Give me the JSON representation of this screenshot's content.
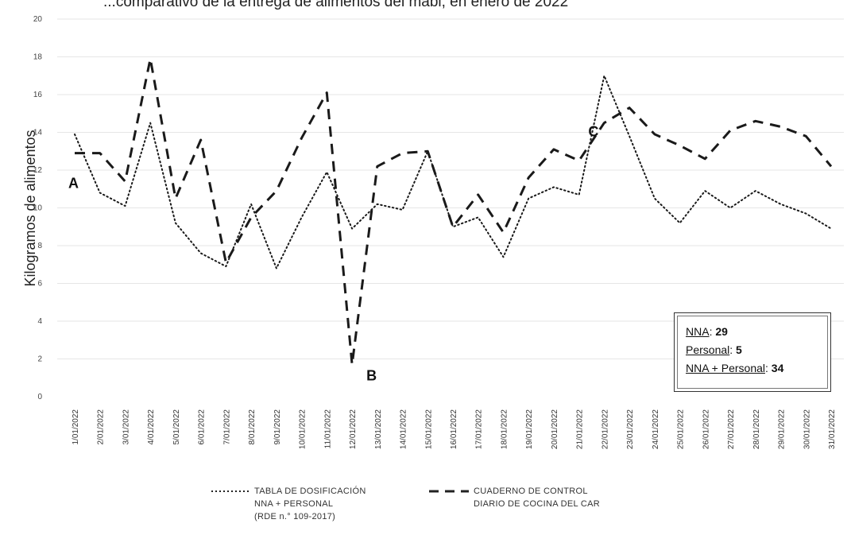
{
  "title": "...comparativo de la entrega de alimentos del mabi, en enero de 2022",
  "chart_data": {
    "type": "line",
    "ylabel": "Kilogramos de alimentos",
    "ylim": [
      0,
      20
    ],
    "y_ticks": [
      0,
      2,
      4,
      6,
      8,
      10,
      12,
      14,
      16,
      18,
      20
    ],
    "categories": [
      "1/01/2022",
      "2/01/2022",
      "3/01/2022",
      "4/01/2022",
      "5/01/2022",
      "6/01/2022",
      "7/01/2022",
      "8/01/2022",
      "9/01/2022",
      "10/01/2022",
      "11/01/2022",
      "12/01/2022",
      "13/01/2022",
      "14/01/2022",
      "15/01/2022",
      "16/01/2022",
      "17/01/2022",
      "18/01/2022",
      "19/01/2022",
      "20/01/2022",
      "21/01/2022",
      "22/01/2022",
      "23/01/2022",
      "24/01/2022",
      "25/01/2022",
      "26/01/2022",
      "27/01/2022",
      "28/01/2022",
      "29/01/2022",
      "30/01/2022",
      "31/01/2022"
    ],
    "series": [
      {
        "name": "TABLA DE DOSIFICACIÓN NNA + PERSONAL (RDE n.° 109-2017)",
        "style": "dotted",
        "values": [
          13.9,
          10.8,
          10.1,
          14.5,
          9.2,
          7.6,
          6.9,
          10.2,
          6.8,
          9.5,
          11.9,
          8.9,
          10.2,
          9.9,
          13.0,
          9.0,
          9.5,
          7.4,
          10.5,
          11.1,
          10.7,
          17.0,
          13.8,
          10.5,
          9.2,
          10.9,
          10.0,
          10.9,
          10.2,
          9.7,
          8.9
        ]
      },
      {
        "name": "CUADERNO DE CONTROL DIARIO DE COCINA DEL CAR",
        "style": "dashed",
        "values": [
          12.9,
          12.9,
          11.4,
          17.9,
          10.5,
          13.6,
          7.1,
          9.5,
          10.9,
          13.7,
          16.1,
          1.7,
          12.2,
          12.9,
          13.0,
          9.0,
          10.7,
          8.7,
          11.6,
          13.1,
          12.5,
          14.5,
          15.3,
          13.9,
          13.3,
          12.6,
          14.1,
          14.6,
          14.3,
          13.8,
          12.2
        ]
      }
    ],
    "annotations": [
      {
        "text": "A",
        "category": "1/01/2022"
      },
      {
        "text": "B",
        "category": "12/01/2022"
      },
      {
        "text": "C",
        "category": "22/01/2022"
      }
    ],
    "legend_lines": [
      [
        "TABLA DE DOSIFICACIÓN",
        "NNA + PERSONAL",
        "(RDE n.° 109-2017)"
      ],
      [
        "CUADERNO DE CONTROL",
        "DIARIO DE COCINA DEL CAR"
      ]
    ]
  },
  "info_box": {
    "nna_label": "NNA",
    "nna_value": "29",
    "personal_label": "Personal",
    "personal_value": "5",
    "total_label": "NNA + Personal",
    "total_value": "34"
  }
}
